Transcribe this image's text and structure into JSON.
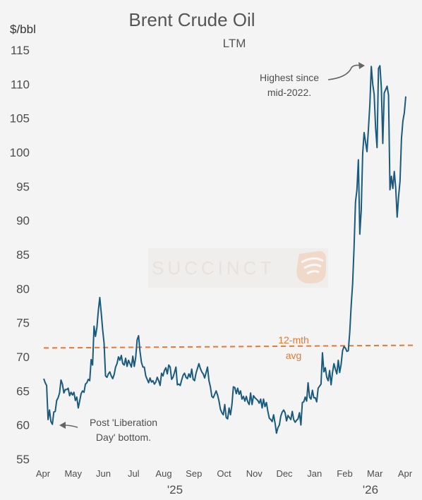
{
  "chart_data": {
    "type": "line",
    "title": "Brent Crude Oil",
    "subtitle": "LTM",
    "ylabel": "$/bbl",
    "ylim": [
      55,
      115
    ],
    "yticks": [
      55,
      60,
      65,
      70,
      75,
      80,
      85,
      90,
      95,
      100,
      105,
      110,
      115
    ],
    "xticks": [
      "Apr",
      "May",
      "Jun",
      "Jul",
      "Aug",
      "Sep",
      "Oct",
      "Nov",
      "Dec",
      "Jan",
      "Feb",
      "Mar",
      "Apr"
    ],
    "year_labels": [
      "'25",
      "'26"
    ],
    "series": [
      {
        "color": "#1a5a7e",
        "values": [
          66.8,
          66.2,
          65.8,
          60.8,
          62.2,
          60.5,
          60.1,
          61.9,
          62.0,
          63.6,
          64.0,
          64.7,
          66.6,
          66.0,
          64.7,
          65.2,
          65.2,
          65.4,
          64.3,
          64.8,
          64.4,
          64.8,
          63.6,
          64.1,
          62.5,
          63.5,
          64.6,
          65.0,
          64.8,
          66.0,
          66.2,
          66.7,
          66.5,
          69.6,
          68.8,
          74.5,
          73.0,
          74.3,
          76.8,
          78.7,
          76.5,
          74.0,
          72.0,
          67.2,
          67.0,
          67.5,
          67.8,
          67.2,
          66.8,
          67.4,
          68.5,
          69.0,
          70.0,
          69.5,
          70.2,
          69.0,
          68.8,
          69.8,
          68.6,
          69.5,
          69.0,
          68.5,
          70.1,
          68.6,
          69.9,
          72.5,
          73.1,
          70.8,
          69.2,
          68.5,
          68.5,
          67.2,
          66.7,
          66.2,
          66.9,
          66.3,
          66.5,
          66.0,
          66.3,
          67.0,
          66.5,
          65.8,
          67.6,
          67.2,
          68.0,
          68.4,
          67.5,
          68.8,
          68.5,
          66.7,
          67.0,
          67.7,
          68.5,
          65.9,
          66.0,
          65.8,
          66.6,
          67.3,
          67.6,
          67.0,
          66.8,
          67.5,
          67.0,
          68.2,
          66.7,
          66.5,
          67.6,
          68.3,
          69.0,
          68.3,
          67.8,
          67.5,
          66.9,
          67.7,
          68.5,
          66.5,
          65.6,
          64.2,
          64.0,
          64.5,
          65.0,
          64.4,
          63.5,
          62.3,
          61.8,
          61.5,
          63.0,
          61.1,
          60.9,
          62.5,
          61.5,
          63.0,
          65.6,
          65.5,
          64.6,
          65.4,
          64.5,
          65.0,
          63.8,
          64.2,
          63.5,
          64.2,
          63.4,
          63.0,
          64.7,
          63.0,
          64.3,
          64.0,
          63.8,
          63.6,
          63.2,
          63.8,
          62.5,
          63.8,
          62.7,
          63.3,
          62.0,
          61.0,
          60.8,
          60.5,
          61.5,
          60.3,
          58.8,
          59.6,
          60.0,
          61.3,
          61.9,
          62.2,
          61.8,
          60.6,
          61.4,
          61.1,
          60.8,
          62.0,
          60.8,
          60.4,
          60.7,
          60.9,
          61.8,
          60.0,
          63.3,
          63.4,
          64.1,
          63.5,
          66.2,
          64.1,
          63.8,
          65.1,
          64.0,
          64.0,
          63.4,
          65.4,
          65.7,
          66.0,
          70.6,
          67.8,
          68.4,
          67.0,
          66.5,
          68.0,
          65.9,
          67.7,
          69.0,
          68.2,
          67.5,
          69.5,
          67.7,
          68.9,
          70.9,
          71.5,
          71.3,
          70.8,
          70.9,
          73.6,
          77.5,
          80.7,
          86.0,
          92.7,
          94.5,
          98.9,
          88.0,
          91.5,
          99.8,
          102.9,
          101.5,
          100.1,
          103.4,
          107.0,
          112.6,
          110.0,
          108.5,
          103.6,
          100.7,
          112.3,
          112.7,
          109.5,
          101.3,
          108.7,
          109.2,
          109.7,
          108.4,
          94.5,
          96.5,
          94.7,
          97.2,
          94.8,
          90.5,
          93.5,
          95.8,
          102.0,
          104.6,
          105.8,
          108.2
        ]
      }
    ],
    "reference_line": {
      "label": "12-mth avg",
      "value": 71.3,
      "end_value": 71.7,
      "color": "#e07a3c",
      "style": "dashed"
    },
    "annotations": {
      "high_line1": "Highest since",
      "high_line2": "mid-2022.",
      "low_line1": "Post 'Liberation",
      "low_line2": "Day' bottom.",
      "avg_line1": "12-mth",
      "avg_line2": "avg"
    },
    "grid": false,
    "legend": "none"
  },
  "watermark": {
    "text": "SUCCINCT",
    "icon": "succinct-logo-icon",
    "color": "#f2c9ad"
  }
}
